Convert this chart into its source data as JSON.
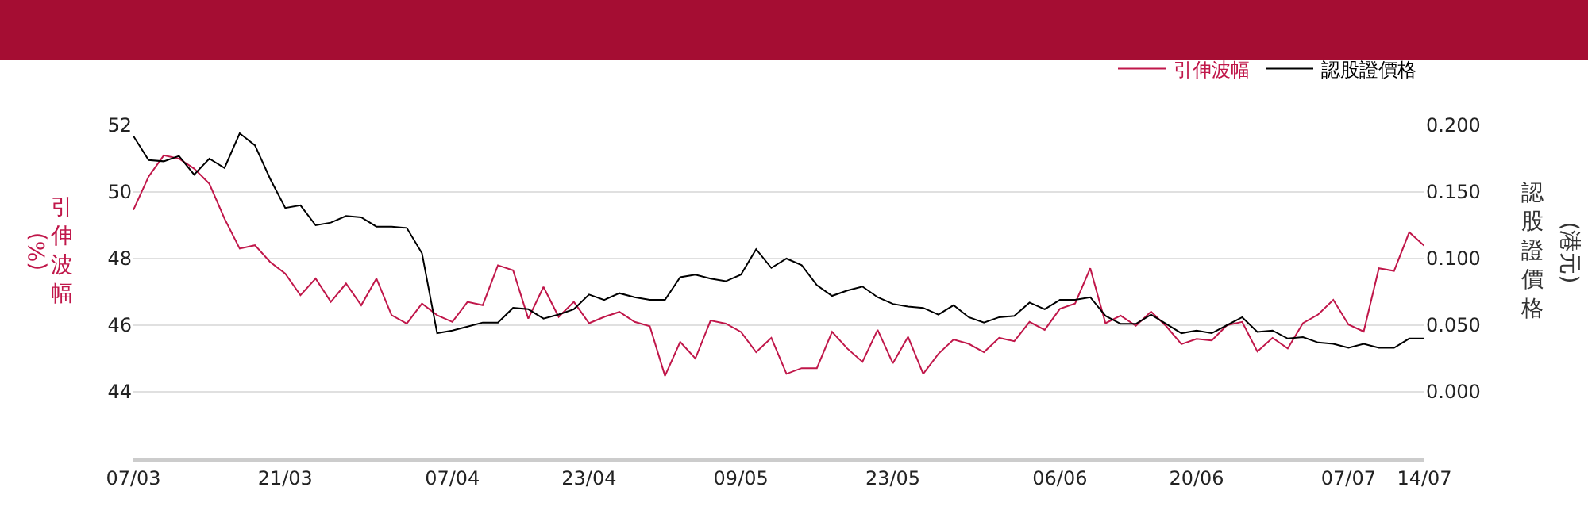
{
  "chart_data": {
    "type": "line",
    "categories": [
      "07/03",
      null,
      null,
      null,
      null,
      null,
      null,
      null,
      null,
      null,
      "21/03",
      null,
      null,
      null,
      null,
      null,
      null,
      null,
      null,
      null,
      null,
      "07/04",
      null,
      null,
      null,
      null,
      null,
      null,
      null,
      null,
      "23/04",
      null,
      null,
      null,
      null,
      null,
      null,
      null,
      null,
      null,
      "09/05",
      null,
      null,
      null,
      null,
      null,
      null,
      null,
      null,
      null,
      "23/05",
      null,
      null,
      null,
      null,
      null,
      null,
      null,
      null,
      null,
      null,
      "06/06",
      null,
      null,
      null,
      null,
      null,
      null,
      null,
      null,
      "20/06",
      null,
      null,
      null,
      null,
      null,
      null,
      null,
      null,
      null,
      "07/07",
      null,
      null,
      null,
      null,
      "14/07"
    ],
    "series": [
      {
        "name": "引伸波幅",
        "color": "#c0174a",
        "values": [
          49.46,
          50.46,
          51.1,
          51.0,
          50.7,
          50.25,
          49.2,
          48.3,
          48.4,
          47.9,
          47.55,
          46.9,
          47.4,
          46.7,
          47.25,
          46.6,
          47.4,
          46.3,
          46.05,
          46.65,
          46.3,
          46.1,
          46.7,
          46.6,
          47.8,
          47.65,
          46.2,
          47.15,
          46.25,
          46.7,
          46.06,
          46.25,
          46.4,
          46.1,
          45.97,
          44.48,
          45.5,
          45.0,
          46.14,
          46.05,
          45.8,
          45.19,
          45.62,
          44.54,
          44.71,
          44.71,
          45.8,
          45.3,
          44.9,
          45.86,
          44.86,
          45.65,
          44.54,
          45.14,
          45.57,
          45.44,
          45.19,
          45.62,
          45.52,
          46.1,
          45.86,
          46.49,
          46.65,
          47.71,
          46.06,
          46.29,
          45.98,
          46.41,
          45.97,
          45.43,
          45.59,
          45.54,
          46.0,
          46.1,
          45.21,
          45.62,
          45.3,
          46.06,
          46.32,
          46.76,
          46.02,
          45.81,
          47.71,
          47.63,
          48.79,
          48.38
        ]
      },
      {
        "name": "認股證價格",
        "color": "#000000",
        "axis": "y2",
        "values": [
          0.192,
          0.174,
          0.173,
          0.177,
          0.163,
          0.175,
          0.168,
          0.194,
          0.185,
          0.16,
          0.138,
          0.14,
          0.125,
          0.127,
          0.132,
          0.131,
          0.124,
          0.124,
          0.123,
          0.104,
          0.044,
          0.046,
          0.049,
          0.052,
          0.052,
          0.063,
          0.062,
          0.055,
          0.058,
          0.062,
          0.073,
          0.069,
          0.074,
          0.071,
          0.069,
          0.069,
          0.086,
          0.088,
          0.085,
          0.083,
          0.088,
          0.107,
          0.093,
          0.1,
          0.095,
          0.08,
          0.072,
          0.076,
          0.079,
          0.071,
          0.066,
          0.064,
          0.063,
          0.058,
          0.065,
          0.056,
          0.052,
          0.056,
          0.057,
          0.067,
          0.062,
          0.069,
          0.069,
          0.071,
          0.057,
          0.051,
          0.051,
          0.058,
          0.051,
          0.044,
          0.046,
          0.044,
          0.05,
          0.056,
          0.045,
          0.046,
          0.04,
          0.041,
          0.037,
          0.036,
          0.033,
          0.036,
          0.033,
          0.033,
          0.04,
          0.04
        ]
      }
    ],
    "ylabel": "引伸波幅 (%)",
    "y2label": "認股證價格 (港元)",
    "ylim": [
      42,
      52
    ],
    "yticks": [
      44,
      46,
      48,
      50,
      52
    ],
    "y2lim": [
      -0.05,
      0.2
    ],
    "y2ticks": [
      {
        "value": 0,
        "label": "0.000"
      },
      {
        "value": 0.05,
        "label": "0.050"
      },
      {
        "value": 0.1,
        "label": "0.100"
      },
      {
        "value": 0.15,
        "label": "0.150"
      },
      {
        "value": 0.2,
        "label": "0.200"
      }
    ],
    "grid": "y",
    "legend": "top right",
    "marker": "none",
    "line_style": "solid"
  }
}
